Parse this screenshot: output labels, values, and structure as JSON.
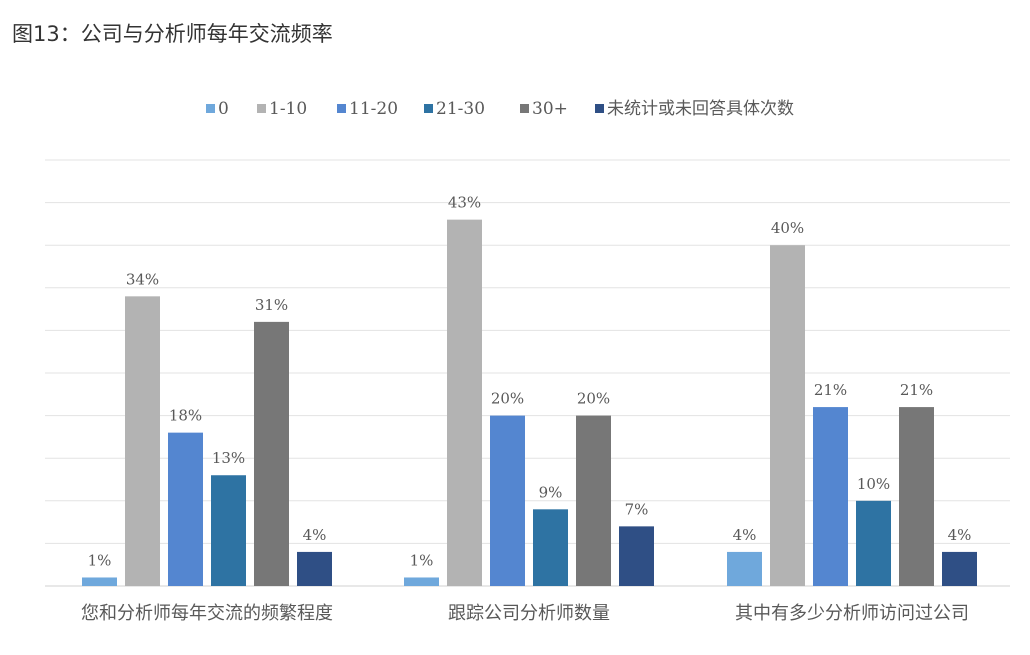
{
  "figure_title": "图13：公司与分析师每年交流频率",
  "colors": {
    "0": "#6fa8dc",
    "1-10": "#b3b3b3",
    "11-20": "#5486d0",
    "21-30": "#2e73a3",
    "30+": "#777777",
    "unknown": "#2f4f85",
    "grid": "#e3e3e3",
    "text": "#595959"
  },
  "chart_data": {
    "type": "bar",
    "title": "",
    "xlabel": "",
    "ylabel": "",
    "ylim": [
      0,
      50
    ],
    "grid": true,
    "legend_position": "top",
    "categories": [
      "您和分析师每年交流的频繁程度",
      "跟踪公司分析师数量",
      "其中有多少分析师访问过公司"
    ],
    "series": [
      {
        "name": "0",
        "color_key": "0",
        "values": [
          1,
          1,
          4
        ],
        "labels": [
          "1%",
          "1%",
          "4%"
        ]
      },
      {
        "name": "1-10",
        "color_key": "1-10",
        "values": [
          34,
          43,
          40
        ],
        "labels": [
          "34%",
          "43%",
          "40%"
        ]
      },
      {
        "name": "11-20",
        "color_key": "11-20",
        "values": [
          18,
          20,
          21
        ],
        "labels": [
          "18%",
          "20%",
          "21%"
        ]
      },
      {
        "name": "21-30",
        "color_key": "21-30",
        "values": [
          13,
          9,
          10
        ],
        "labels": [
          "13%",
          "9%",
          "10%"
        ]
      },
      {
        "name": "30+",
        "color_key": "30+",
        "values": [
          31,
          20,
          21
        ],
        "labels": [
          "31%",
          "20%",
          "21%"
        ]
      },
      {
        "name": "未统计或未回答具体次数",
        "color_key": "unknown",
        "values": [
          4,
          7,
          4
        ],
        "labels": [
          "4%",
          "7%",
          "4%"
        ]
      }
    ]
  }
}
